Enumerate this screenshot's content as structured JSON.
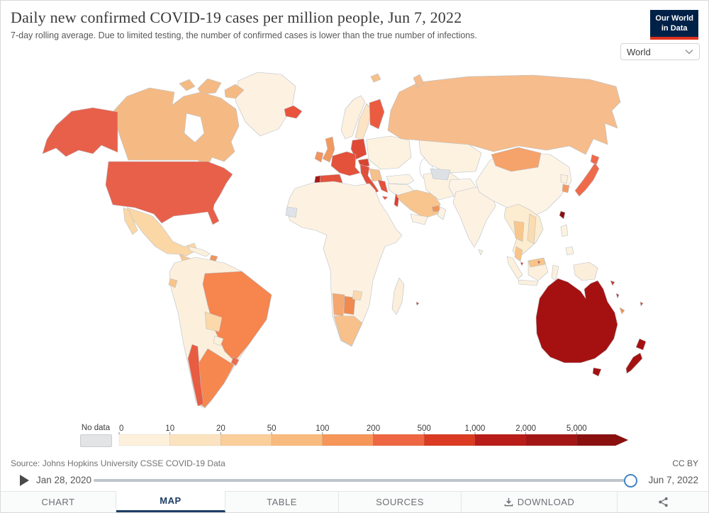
{
  "header": {
    "title": "Daily new confirmed COVID-19 cases per million people, Jun 7, 2022",
    "subtitle": "7-day rolling average. Due to limited testing, the number of confirmed cases is lower than the true number of infections."
  },
  "logo": {
    "line1": "Our World",
    "line2": "in Data",
    "bg_color": "#002147",
    "accent_color": "#e0321f"
  },
  "entity_selector": {
    "value": "World"
  },
  "legend": {
    "no_data_label": "No data",
    "no_data_color": "#e2e4e6",
    "ticks": [
      "0",
      "10",
      "20",
      "50",
      "100",
      "200",
      "500",
      "1,000",
      "2,000",
      "5,000"
    ],
    "bin_colors": [
      "#fdf1dc",
      "#fce3c0",
      "#fbcf9a",
      "#f9bb7d",
      "#f69659",
      "#ee6742",
      "#da3b22",
      "#b81d19",
      "#a31616",
      "#8a1010"
    ]
  },
  "footer": {
    "source": "Source: Johns Hopkins University CSSE COVID-19 Data",
    "license": "CC BY"
  },
  "timeline": {
    "start_date": "Jan 28, 2020",
    "end_date": "Jun 7, 2022"
  },
  "tabs": [
    {
      "label": "CHART",
      "active": false
    },
    {
      "label": "MAP",
      "active": true
    },
    {
      "label": "TABLE",
      "active": false
    },
    {
      "label": "SOURCES",
      "active": false
    },
    {
      "label": "DOWNLOAD",
      "active": false
    },
    {
      "label": "",
      "active": false,
      "icon": "share-icon"
    }
  ],
  "map": {
    "water_color": "#ffffff",
    "border_color": "#b8c0c8",
    "region_fills": {
      "water": "#ffffff",
      "greenland": "#fdf1e2",
      "canada": "#f5ba83",
      "usa": "#e8604a",
      "mexico": "#fbd7a6",
      "central-america": "#f9c98f",
      "panama": "#dd3b27",
      "cuba": "#fcf0dc",
      "hispaniola": "#f0945c",
      "southamerica-base": "#fcf0dc",
      "brazil": "#f6854e",
      "argentina": "#f6874f",
      "chile": "#e85c42",
      "bolivia": "#fbd9ab",
      "paraguay": "#fdf0da",
      "uruguay": "#ee6a4b",
      "ecuador": "#f9c48a",
      "iceland": "#e8543c",
      "uk": "#f09a61",
      "ireland": "#f2945e",
      "norway": "#fdf0dc",
      "sweden": "#fbe3c4",
      "finland": "#ea5b40",
      "europe-east": "#fdf2e0",
      "germany": "#df4a36",
      "france": "#e4523b",
      "spain": "#e3523c",
      "portugal": "#a51a15",
      "italy": "#e1503a",
      "austria": "#d8452f",
      "balkans": "#f5c08a",
      "greece": "#e5523b",
      "russia": "#f6bc8b",
      "svalbard": "#f5c08a",
      "turkey": "#fdf4e6",
      "cyprus": "#e0402e",
      "levant": "#e0402e",
      "mideast": "#fdf3e4",
      "saudi": "#f8c58e",
      "uae": "#f0945c",
      "oman": "#fdf2e2",
      "yemen": "#fdf2e2",
      "iran": "#fdf2e0",
      "central-asia": "#fdf2e0",
      "turkmenistan": "#dde1e6",
      "afghan-pak": "#fdf4e6",
      "india": "#fdf2e2",
      "sri-lanka": "#fcf0dc",
      "china": "#fdf4e6",
      "mongolia": "#f5a26b",
      "north-korea": "#fdf0dc",
      "south-korea": "#f49a64",
      "japan": "#ef6a4a",
      "taiwan": "#8b0e0e",
      "indochina": "#fcecd0",
      "thailand": "#f9c68b",
      "vietnam": "#fbdcb0",
      "malaysia": "#f9c486",
      "singapore": "#e0402e",
      "indonesia": "#fcf0dd",
      "brunei": "#e0402e",
      "papua": "#fbeedb",
      "philippines": "#fdf2e0",
      "australia": "#a51111",
      "new-zealand": "#a51111",
      "new-caledonia": "#f09050",
      "pacific-islands": "#c0392b",
      "fiji": "#e0402e",
      "madagascar": "#fbeedb",
      "africa": "#fdf2e2",
      "western-sahara": "#dfe3e8",
      "namibia": "#f5a770",
      "botswana": "#f08a4d",
      "south-africa": "#f8c08b",
      "zimbabwe": "#fbd9ae",
      "mauritius": "#e0402e"
    }
  },
  "chart_data": {
    "type": "choropleth",
    "title": "Daily new confirmed COVID-19 cases per million people",
    "date": "Jun 7, 2022",
    "unit": "confirmed cases per million people, 7-day rolling average",
    "source": "Johns Hopkins University CSSE COVID-19 Data",
    "legend_bins": [
      {
        "range": "0-10",
        "color": "#fdf1dc"
      },
      {
        "range": "10-20",
        "color": "#fce3c0"
      },
      {
        "range": "20-50",
        "color": "#fbcf9a"
      },
      {
        "range": "50-100",
        "color": "#f9bb7d"
      },
      {
        "range": "100-200",
        "color": "#f69659"
      },
      {
        "range": "200-500",
        "color": "#ee6742"
      },
      {
        "range": "500-1,000",
        "color": "#da3b22"
      },
      {
        "range": "1,000-2,000",
        "color": "#b81d19"
      },
      {
        "range": "2,000-5,000",
        "color": "#a31616"
      },
      {
        "range": "5,000+",
        "color": "#8a1010"
      },
      {
        "range": "No data",
        "color": "#e2e4e6"
      }
    ],
    "countries_by_bin": {
      "United States": "200-500",
      "Canada": "50-100",
      "Greenland": "0-10",
      "Mexico": "10-20",
      "Guatemala": "20-50",
      "Panama": "500-1,000",
      "Cuba": "0-10",
      "Dominican Republic": "100-200",
      "Brazil": "100-200",
      "Argentina": "100-200",
      "Chile": "200-500",
      "Uruguay": "200-500",
      "Peru": "10-20",
      "Colombia": "0-10",
      "Venezuela": "0-10",
      "Bolivia": "20-50",
      "Ecuador": "20-50",
      "Paraguay": "0-10",
      "Suriname": "No data",
      "Iceland": "200-500",
      "United Kingdom": "100-200",
      "Ireland": "100-200",
      "Portugal": "2,000-5,000",
      "Spain": "200-500",
      "France": "200-500",
      "Germany": "200-500",
      "Italy": "200-500",
      "Switzerland": "500-1,000",
      "Austria": "500-1,000",
      "Greece": "200-500",
      "Finland": "200-500",
      "Norway": "10-20",
      "Sweden": "10-20",
      "Poland": "0-10",
      "Ukraine": "0-10",
      "Russia": "50-100",
      "Turkey": "0-10",
      "Saudi Arabia": "20-50",
      "United Arab Emirates": "100-200",
      "Israel": "200-500",
      "Cyprus": "500-1,000",
      "Egypt": "0-10",
      "South Africa": "20-50",
      "Namibia": "50-100",
      "Botswana": "100-200",
      "Zimbabwe": "10-20",
      "Western Sahara": "No data",
      "Turkmenistan": "No data",
      "Kazakhstan": "0-10",
      "China": "0-10",
      "India": "0-10",
      "Mongolia": "100-200",
      "Japan": "200-500",
      "South Korea": "100-200",
      "North Korea": "0-10",
      "Taiwan": "5,000+",
      "Thailand": "20-50",
      "Vietnam": "10-20",
      "Malaysia": "20-50",
      "Singapore": "500-1,000",
      "Brunei": "500-1,000",
      "Indonesia": "0-10",
      "Philippines": "0-10",
      "Australia": "2,000-5,000",
      "New Zealand": "2,000-5,000",
      "New Caledonia": "100-200",
      "Mauritius": "500-1,000"
    }
  }
}
